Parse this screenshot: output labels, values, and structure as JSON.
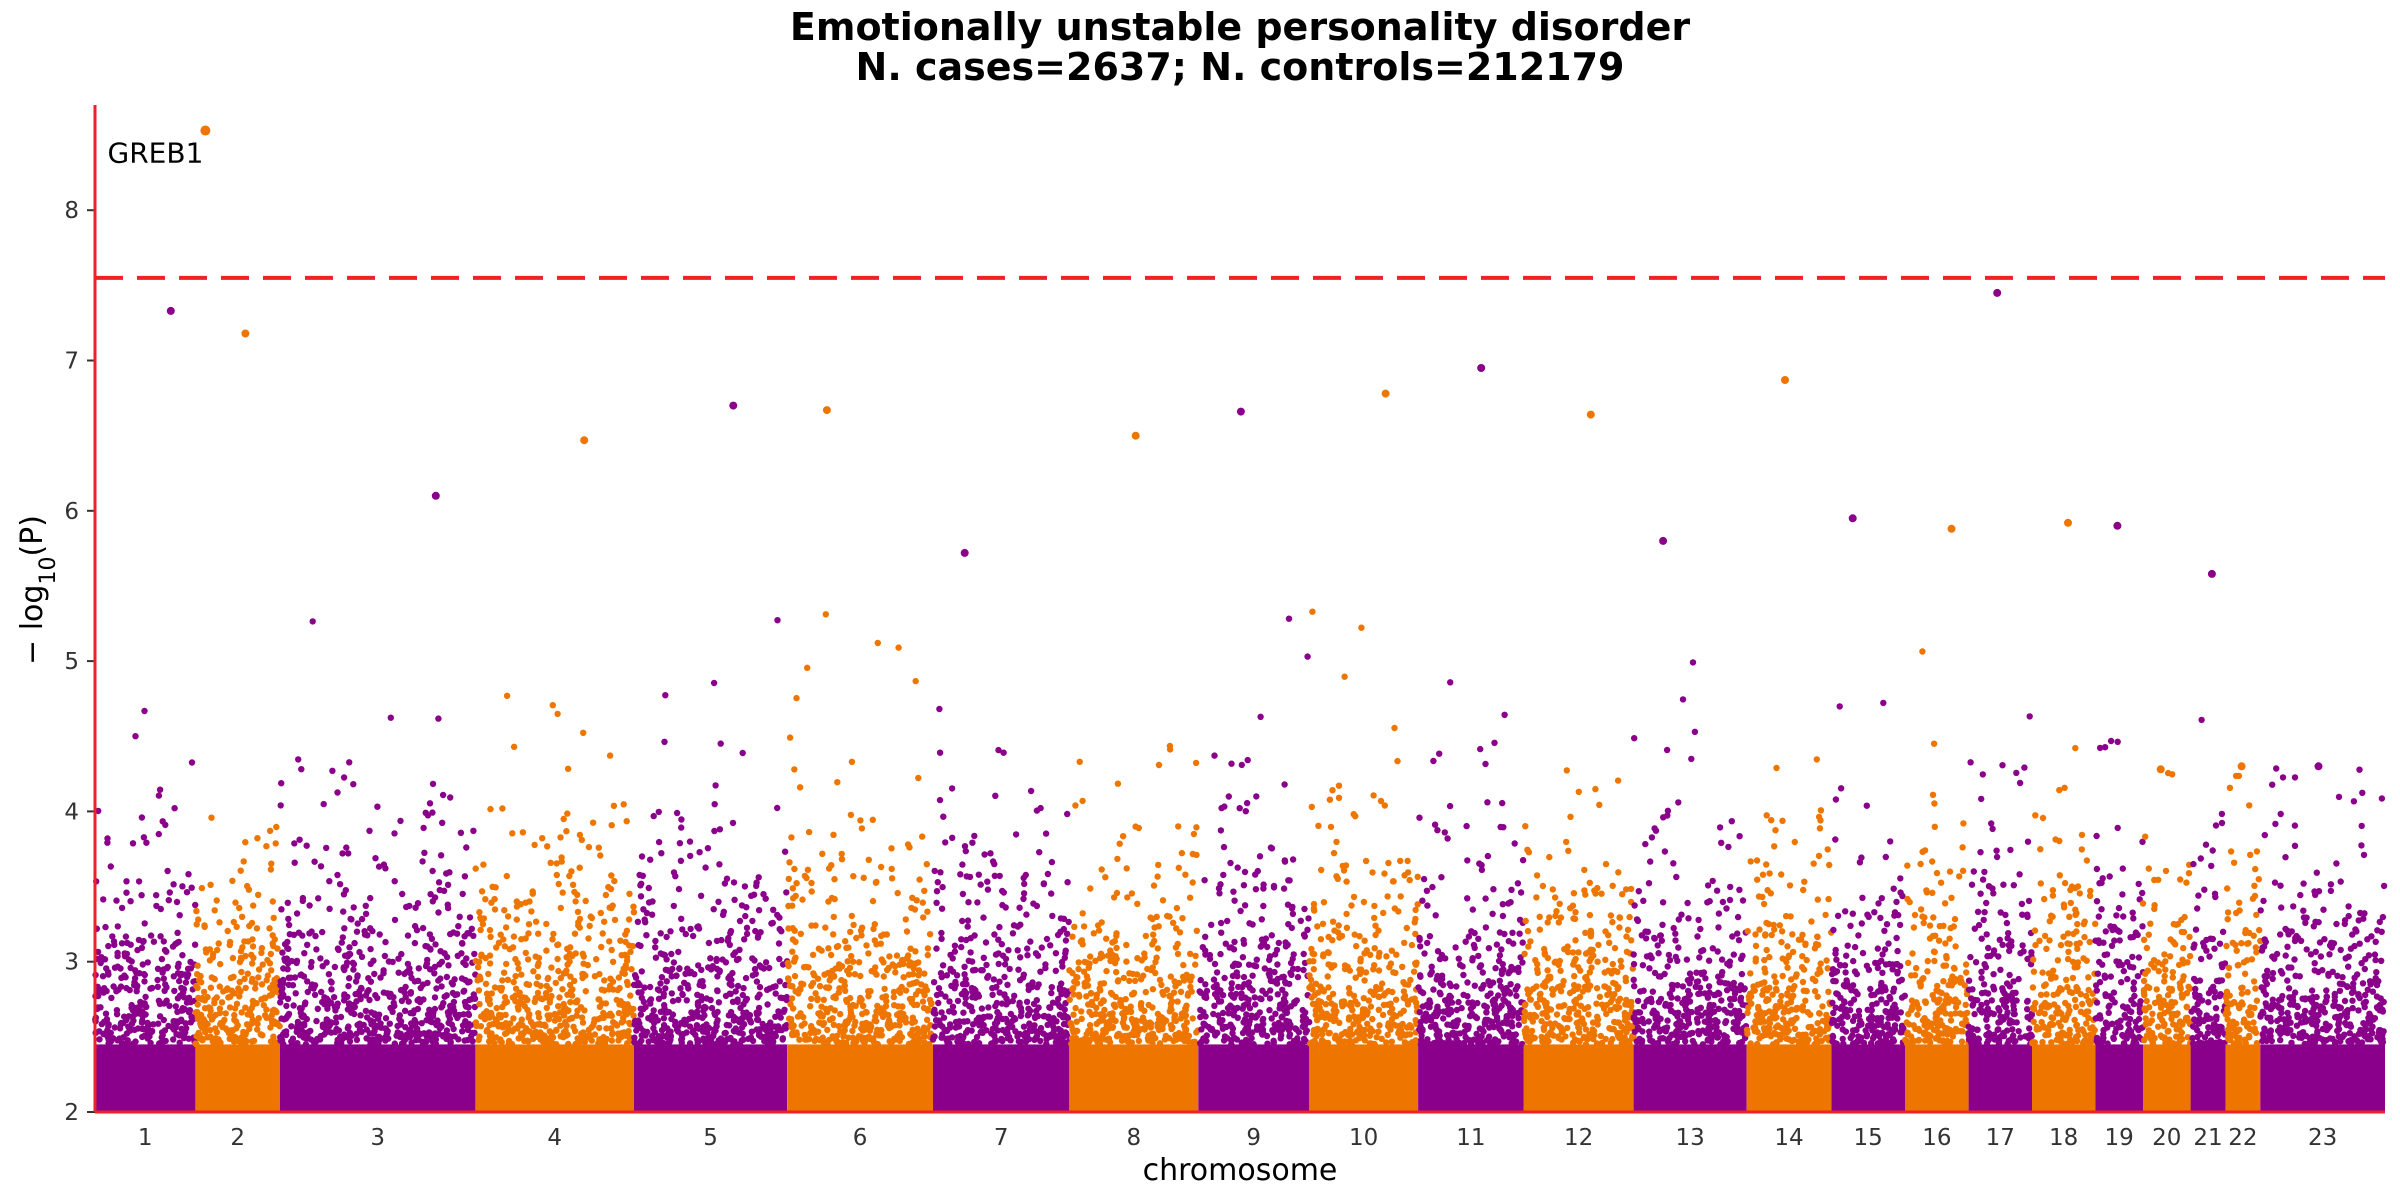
{
  "chart_data": {
    "type": "scatter",
    "subtype": "manhattan",
    "title": "Emotionally unstable personality disorder",
    "subtitle": "N. cases=2637; N. controls=212179",
    "xlabel": "chromosome",
    "ylabel_parts": [
      "− log",
      "10",
      "(P)"
    ],
    "ylim": [
      2,
      8.7
    ],
    "yticks": [
      2,
      3,
      4,
      5,
      6,
      7,
      8
    ],
    "significance_threshold": 7.55,
    "colors": {
      "odd": "#8b008b",
      "even": "#ee7600",
      "threshold_line": "#ee2222",
      "axis_line": "#ee2222"
    },
    "chromosomes": [
      {
        "label": "1",
        "peak": 7.33
      },
      {
        "label": "2",
        "peak": 7.18
      },
      {
        "label": "3",
        "peak": 6.1
      },
      {
        "label": "4",
        "peak": 6.47
      },
      {
        "label": "5",
        "peak": 6.7
      },
      {
        "label": "6",
        "peak": 6.67
      },
      {
        "label": "7",
        "peak": 5.72
      },
      {
        "label": "8",
        "peak": 6.5
      },
      {
        "label": "9",
        "peak": 6.66
      },
      {
        "label": "10",
        "peak": 6.78
      },
      {
        "label": "11",
        "peak": 6.95
      },
      {
        "label": "12",
        "peak": 6.64
      },
      {
        "label": "13",
        "peak": 5.8
      },
      {
        "label": "14",
        "peak": 6.87
      },
      {
        "label": "15",
        "peak": 5.95
      },
      {
        "label": "16",
        "peak": 5.88
      },
      {
        "label": "17",
        "peak": 7.45
      },
      {
        "label": "18",
        "peak": 5.92
      },
      {
        "label": "19",
        "peak": 5.9
      },
      {
        "label": "20",
        "peak": 4.28
      },
      {
        "label": "21",
        "peak": 5.58
      },
      {
        "label": "22",
        "peak": 4.3
      },
      {
        "label": "23",
        "peak": 4.3
      }
    ],
    "annotations": [
      {
        "label": "GREB1",
        "chromosome": "2",
        "value": 8.53
      }
    ]
  }
}
